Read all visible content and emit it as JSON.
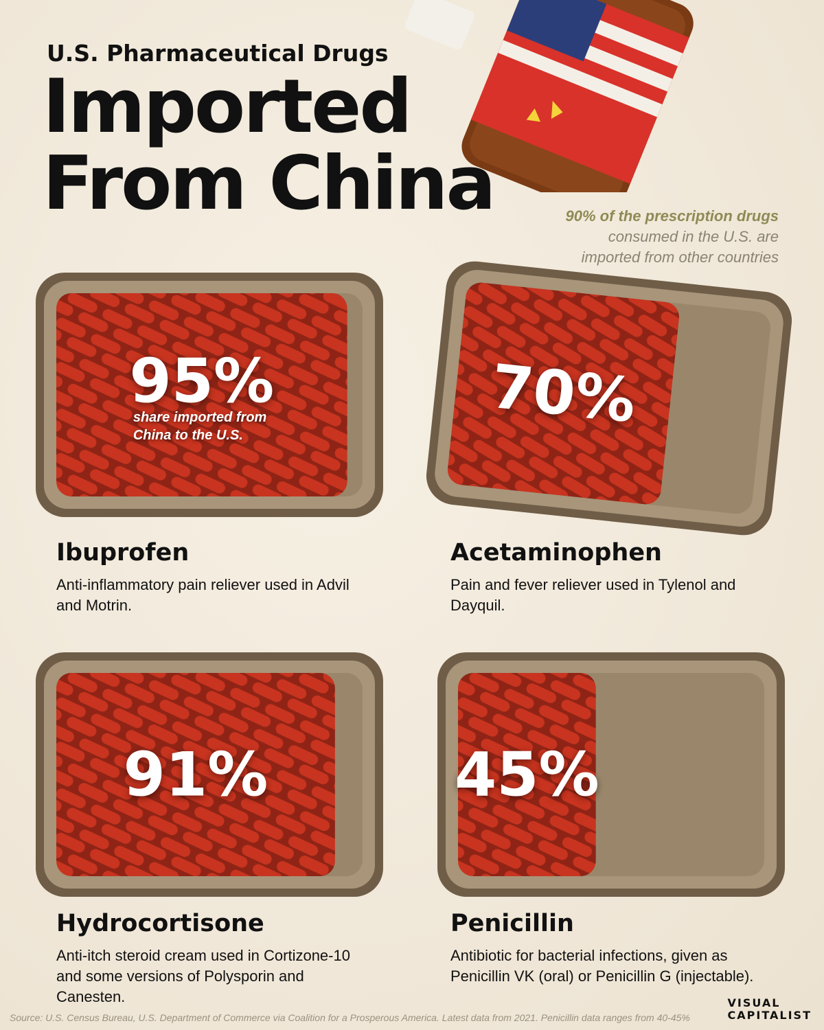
{
  "chart_data": {
    "type": "tray",
    "supertitle": "U.S. Pharmaceutical Drugs",
    "title": "Imported From China",
    "note_highlight": "90% of the prescription drugs",
    "note": "consumed in the U.S. are imported from other countries",
    "categories": [
      "Ibuprofen",
      "Acetaminophen",
      "Hydrocortisone",
      "Penicillin"
    ],
    "descriptions": [
      "Anti-inflammatory pain reliever used in Advil and Motrin.",
      "Pain and fever reliever used in Tylenol and Dayquil.",
      "Anti-itch steroid cream used in Cortizone-10 and some versions of Polysporin and Canesten.",
      "Antibiotic for bacterial infections, given as Penicillin VK (oral) or Penicillin G (injectable)."
    ],
    "values": [
      95,
      70,
      91,
      45
    ],
    "value_labels": [
      "95%",
      "70%",
      "91%",
      "45%"
    ],
    "value_caption": "share imported from China to the U.S.",
    "ylim": [
      0,
      100
    ],
    "color": "#c8341f",
    "source": "Source: U.S. Census Bureau, U.S. Department of Commerce via Coalition for a Prosperous America. Latest data from 2021. Penicillin data ranges from 40-45%",
    "brand": [
      "VISUAL",
      "CAPITALIST"
    ]
  }
}
